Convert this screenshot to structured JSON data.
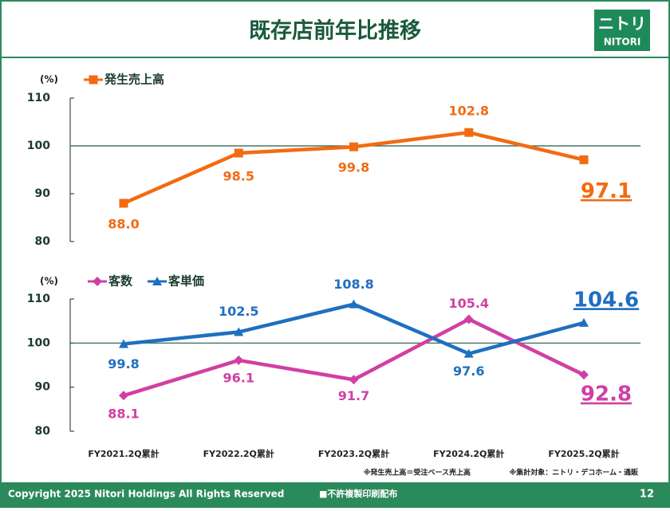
{
  "header": {
    "title": "既存店前年比推移",
    "logo_jp": "ニトリ",
    "logo_en": "NITORI"
  },
  "chart_data": [
    {
      "type": "line",
      "unit": "(%)",
      "ylim": [
        80,
        110
      ],
      "yticks": [
        80,
        90,
        100,
        110
      ],
      "reference_line": 100,
      "reference_color": "#1d5c45",
      "series": [
        {
          "name": "発生売上高",
          "color": "#f26b12",
          "marker": "square",
          "values": [
            88.0,
            98.5,
            99.8,
            102.8,
            97.1
          ],
          "value_labels": [
            "88.0",
            "98.5",
            "99.8",
            "102.8",
            "97.1"
          ]
        }
      ]
    },
    {
      "type": "line",
      "unit": "(%)",
      "ylim": [
        80,
        110
      ],
      "yticks": [
        80,
        90,
        100,
        110
      ],
      "reference_line": 100,
      "reference_color": "#1d5c45",
      "categories": [
        "FY2021.2Q累計",
        "FY2022.2Q累計",
        "FY2023.2Q累計",
        "FY2024.2Q累計",
        "FY2025.2Q累計"
      ],
      "series": [
        {
          "name": "客数",
          "color": "#d13fa3",
          "marker": "diamond",
          "values": [
            88.1,
            96.1,
            91.7,
            105.4,
            92.8
          ],
          "value_labels": [
            "88.1",
            "96.1",
            "91.7",
            "105.4",
            "92.8"
          ]
        },
        {
          "name": "客単価",
          "color": "#1f6fbf",
          "marker": "triangle",
          "values": [
            99.8,
            102.5,
            108.8,
            97.6,
            104.6
          ],
          "value_labels": [
            "99.8",
            "102.5",
            "108.8",
            "97.6",
            "104.6"
          ]
        }
      ]
    }
  ],
  "notes": [
    "※発生売上高＝受注ベース売上高",
    "※集計対象：ニトリ・デコホーム・通販"
  ],
  "footer": {
    "copyright": "Copyright 2025 Nitori Holdings All Rights Reserved",
    "notice": "■不許複製印刷配布",
    "page": "12"
  }
}
